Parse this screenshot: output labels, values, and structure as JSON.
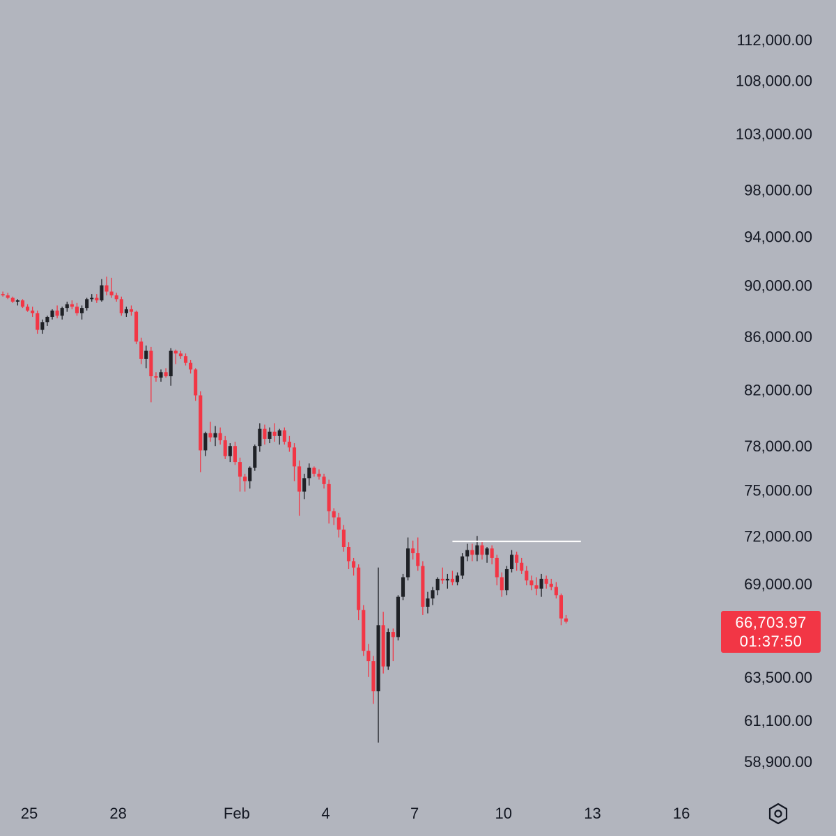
{
  "chart_data": {
    "type": "candlestick",
    "y_scale": "log",
    "colors": {
      "background": "#b2b5be",
      "up": "#1f2126",
      "down": "#f23645",
      "text": "#131722",
      "horizontal_line": "#ffffff"
    },
    "y_ticks": [
      112000,
      108000,
      103000,
      98000,
      94000,
      90000,
      86000,
      82000,
      78000,
      75000,
      72000,
      69000,
      63500,
      61100,
      58900
    ],
    "y_tick_labels": [
      "112,000.00",
      "108,000.00",
      "103,000.00",
      "98,000.00",
      "94,000.00",
      "90,000.00",
      "86,000.00",
      "82,000.00",
      "78,000.00",
      "75,000.00",
      "72,000.00",
      "69,000.00",
      "63,500.00",
      "61,100.00",
      "58,900.00"
    ],
    "x_ticks": [
      {
        "label": "25",
        "day": 0
      },
      {
        "label": "28",
        "day": 3
      },
      {
        "label": "Feb",
        "day": 7
      },
      {
        "label": "4",
        "day": 10
      },
      {
        "label": "7",
        "day": 13
      },
      {
        "label": "10",
        "day": 16
      },
      {
        "label": "13",
        "day": 19
      },
      {
        "label": "16",
        "day": 22
      }
    ],
    "candles_per_day": 6,
    "candles": [
      [
        89500,
        89600,
        89200,
        89300
      ],
      [
        89300,
        89500,
        89100,
        89200
      ],
      [
        89200,
        89400,
        88900,
        89000
      ],
      [
        89000,
        89100,
        88600,
        88700
      ],
      [
        88700,
        88900,
        88400,
        88800
      ],
      [
        88800,
        88900,
        88200,
        88300
      ],
      [
        88300,
        88500,
        87900,
        88000
      ],
      [
        88000,
        88300,
        87500,
        87800
      ],
      [
        87800,
        88000,
        86200,
        86500
      ],
      [
        86500,
        87300,
        86200,
        87100
      ],
      [
        87100,
        87600,
        86800,
        87500
      ],
      [
        87500,
        88100,
        87300,
        88000
      ],
      [
        88000,
        88400,
        87400,
        87600
      ],
      [
        87600,
        88300,
        87300,
        88200
      ],
      [
        88200,
        88700,
        87900,
        88500
      ],
      [
        88500,
        88800,
        88100,
        88300
      ],
      [
        88300,
        88600,
        87600,
        87800
      ],
      [
        87800,
        88400,
        87300,
        88200
      ],
      [
        88200,
        89000,
        88000,
        88900
      ],
      [
        88900,
        89300,
        88700,
        89000
      ],
      [
        89000,
        89300,
        88600,
        88800
      ],
      [
        88800,
        90500,
        88700,
        90000
      ],
      [
        90000,
        90700,
        89200,
        89500
      ],
      [
        89500,
        90600,
        89000,
        89200
      ],
      [
        89200,
        89400,
        88700,
        88900
      ],
      [
        88900,
        89100,
        87600,
        87800
      ],
      [
        87800,
        88300,
        87500,
        88100
      ],
      [
        88100,
        88400,
        87600,
        87900
      ],
      [
        87900,
        88000,
        85400,
        85600
      ],
      [
        85600,
        85900,
        83900,
        84300
      ],
      [
        84300,
        85300,
        83600,
        84900
      ],
      [
        84900,
        85200,
        81100,
        83000
      ],
      [
        83000,
        83300,
        82600,
        82900
      ],
      [
        82900,
        83500,
        82600,
        83300
      ],
      [
        83300,
        83600,
        82900,
        83000
      ],
      [
        83000,
        85100,
        82300,
        84900
      ],
      [
        84900,
        85000,
        83900,
        84700
      ],
      [
        84700,
        84900,
        84300,
        84500
      ],
      [
        84500,
        84700,
        83800,
        84000
      ],
      [
        84000,
        84200,
        83200,
        83500
      ],
      [
        83500,
        83600,
        81200,
        81600
      ],
      [
        81600,
        81900,
        76200,
        77700
      ],
      [
        77700,
        79000,
        77300,
        78900
      ],
      [
        78900,
        79700,
        78300,
        78600
      ],
      [
        78600,
        79400,
        78000,
        78900
      ],
      [
        78900,
        79300,
        78100,
        78400
      ],
      [
        78400,
        78700,
        77100,
        77300
      ],
      [
        77300,
        78200,
        76900,
        78000
      ],
      [
        78000,
        78300,
        76700,
        76900
      ],
      [
        76900,
        77200,
        74900,
        75900
      ],
      [
        75900,
        76100,
        74900,
        75600
      ],
      [
        75600,
        76600,
        75100,
        76500
      ],
      [
        76500,
        78100,
        76300,
        78000
      ],
      [
        78000,
        79600,
        77600,
        79200
      ],
      [
        79200,
        79500,
        78100,
        78500
      ],
      [
        78500,
        79300,
        78200,
        79000
      ],
      [
        79000,
        79600,
        78300,
        78700
      ],
      [
        78700,
        79200,
        78100,
        79100
      ],
      [
        79100,
        79300,
        78100,
        78300
      ],
      [
        78300,
        78700,
        77600,
        77900
      ],
      [
        77900,
        78200,
        75600,
        76600
      ],
      [
        76600,
        77000,
        73300,
        74900
      ],
      [
        74900,
        76100,
        74400,
        75800
      ],
      [
        75800,
        76800,
        75300,
        76500
      ],
      [
        76500,
        76600,
        75900,
        76100
      ],
      [
        76100,
        76400,
        75700,
        75900
      ],
      [
        75900,
        76100,
        75100,
        75400
      ],
      [
        75400,
        75700,
        72800,
        73600
      ],
      [
        73600,
        73800,
        72700,
        73200
      ],
      [
        73200,
        73500,
        71900,
        72400
      ],
      [
        72400,
        72700,
        71000,
        71300
      ],
      [
        71300,
        71600,
        69900,
        70400
      ],
      [
        70400,
        70600,
        69500,
        70000
      ],
      [
        70000,
        70200,
        66800,
        67400
      ],
      [
        67400,
        67700,
        64700,
        65000
      ],
      [
        65000,
        65400,
        63500,
        64400
      ],
      [
        64400,
        64700,
        62000,
        62700
      ],
      [
        62700,
        70000,
        59900,
        66500
      ],
      [
        66500,
        67300,
        63700,
        64100
      ],
      [
        64100,
        66300,
        63900,
        66100
      ],
      [
        66100,
        66300,
        64400,
        65800
      ],
      [
        65800,
        68300,
        65600,
        68200
      ],
      [
        68200,
        69600,
        68000,
        69400
      ],
      [
        69400,
        71900,
        69200,
        71200
      ],
      [
        71200,
        71700,
        70500,
        70900
      ],
      [
        70900,
        71900,
        69800,
        70100
      ],
      [
        70100,
        70400,
        67100,
        67600
      ],
      [
        67600,
        68500,
        67200,
        68100
      ],
      [
        68100,
        68800,
        67700,
        68600
      ],
      [
        68600,
        69400,
        68300,
        69300
      ],
      [
        69300,
        70000,
        69000,
        69200
      ],
      [
        69200,
        69600,
        68700,
        69300
      ],
      [
        69300,
        69800,
        68900,
        69100
      ],
      [
        69100,
        69700,
        68900,
        69500
      ],
      [
        69500,
        70900,
        69300,
        70700
      ],
      [
        70700,
        71500,
        70400,
        71100
      ],
      [
        71100,
        71500,
        70400,
        70800
      ],
      [
        70800,
        72000,
        70400,
        71400
      ],
      [
        71400,
        71700,
        70500,
        70800
      ],
      [
        70800,
        71300,
        70300,
        71200
      ],
      [
        71200,
        71400,
        70200,
        70600
      ],
      [
        70600,
        70800,
        68900,
        69400
      ],
      [
        69400,
        69700,
        68200,
        68600
      ],
      [
        68600,
        70100,
        68300,
        69900
      ],
      [
        69900,
        71100,
        69700,
        70800
      ],
      [
        70800,
        71000,
        69800,
        70300
      ],
      [
        70300,
        70600,
        69600,
        69800
      ],
      [
        69800,
        70100,
        68900,
        69200
      ],
      [
        69200,
        69500,
        68600,
        68900
      ],
      [
        68900,
        69400,
        68300,
        68700
      ],
      [
        68700,
        69600,
        68200,
        69300
      ],
      [
        69300,
        69500,
        68700,
        69000
      ],
      [
        69000,
        69300,
        68600,
        68800
      ],
      [
        68800,
        69100,
        68100,
        68300
      ],
      [
        68300,
        68400,
        66500,
        66900
      ],
      [
        66900,
        67100,
        66600,
        66704
      ]
    ],
    "horizontal_lines": [
      {
        "price": 71650,
        "from_candle": 92,
        "to_candle": 118,
        "color": "#ffffff"
      }
    ],
    "last_price": "66,703.97",
    "countdown": "01:37:50",
    "grid": false
  },
  "settings_icon": "hexagon-gear-icon"
}
